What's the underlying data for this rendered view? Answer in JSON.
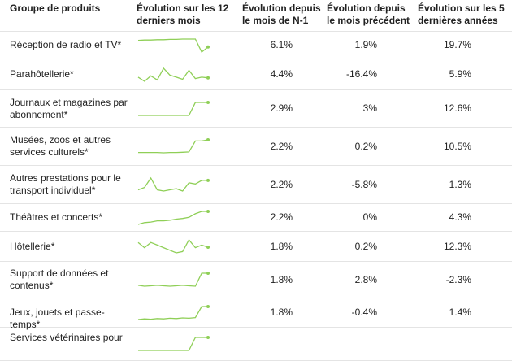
{
  "headers": {
    "group": "Groupe de produits",
    "trend": "Évolution sur les 12 derniers mois",
    "yoy": "Évolution depuis le mois de N-1",
    "mom": "Évolution depuis le mois précédent",
    "five_years": "Évolution sur les 5 dernières années"
  },
  "colors": {
    "spark": "#8fcf57",
    "border": "#e4e4e4",
    "text": "#222222"
  },
  "chart_data": {
    "type": "table",
    "columns": [
      "Groupe de produits",
      "Évolution sur les 12 derniers mois",
      "Évolution depuis le mois de N-1",
      "Évolution depuis le mois précédent",
      "Évolution sur les 5 dernières années"
    ],
    "rows": [
      {
        "name": "Réception de radio et TV*",
        "yoy": "6.1%",
        "mom": "1.9%",
        "five": "19.7%",
        "spark": [
          100.0,
          100.1,
          100.1,
          100.2,
          100.2,
          100.3,
          100.3,
          100.4,
          100.4,
          100.4,
          96.5,
          98.0
        ]
      },
      {
        "name": "Parahôtellerie*",
        "yoy": "4.4%",
        "mom": "-16.4%",
        "five": "5.9%",
        "spark": [
          102,
          96,
          104,
          98,
          115,
          105,
          102,
          99,
          112,
          100,
          102,
          101
        ]
      },
      {
        "name": "Journaux et magazines par abonnement*",
        "yoy": "2.9%",
        "mom": "3%",
        "five": "12.6%",
        "spark": [
          100,
          100,
          100,
          100,
          100,
          100,
          100,
          100,
          100,
          102.9,
          102.9,
          102.9
        ]
      },
      {
        "name": "Musées, zoos et autres services culturels*",
        "yoy": "2.2%",
        "mom": "0.2%",
        "five": "10.5%",
        "spark": [
          100,
          100,
          100,
          100,
          99.95,
          100,
          100,
          100.05,
          100.1,
          102,
          102,
          102.2
        ]
      },
      {
        "name": "Autres prestations pour le transport individuel*",
        "yoy": "2.2%",
        "mom": "-5.8%",
        "five": "1.3%",
        "spark": [
          100,
          101,
          105,
          100,
          99.5,
          100,
          100.5,
          99.5,
          103,
          102.5,
          104,
          104
        ]
      },
      {
        "name": "Théâtres et concerts*",
        "yoy": "2.2%",
        "mom": "0%",
        "five": "4.3%",
        "spark": [
          100,
          100.3,
          100.4,
          100.6,
          100.6,
          100.7,
          100.9,
          101,
          101.2,
          101.8,
          102.2,
          102.2
        ]
      },
      {
        "name": "Hôtellerie*",
        "yoy": "1.8%",
        "mom": "0.2%",
        "five": "12.3%",
        "spark": [
          103,
          101,
          103,
          102,
          101,
          100,
          99,
          99.5,
          104,
          101,
          102,
          101.2
        ]
      },
      {
        "name": "Support de données et contenus*",
        "yoy": "1.8%",
        "mom": "2.8%",
        "five": "-2.3%",
        "spark": [
          100,
          99.8,
          99.9,
          100,
          99.9,
          99.8,
          99.9,
          100,
          99.9,
          99.8,
          102.8,
          102.8
        ]
      },
      {
        "name": "Jeux, jouets et passe-temps*",
        "yoy": "1.8%",
        "mom": "-0.4%",
        "five": "1.4%",
        "spark": [
          100,
          100.2,
          100.1,
          100.3,
          100.2,
          100.4,
          100.3,
          100.5,
          100.4,
          100.6,
          104,
          104
        ]
      },
      {
        "name": "Services vétérinaires pour",
        "yoy": "",
        "mom": "",
        "five": "",
        "spark": [
          100,
          100,
          100,
          100,
          100,
          100,
          100,
          100,
          100,
          101,
          101,
          101
        ]
      }
    ]
  }
}
